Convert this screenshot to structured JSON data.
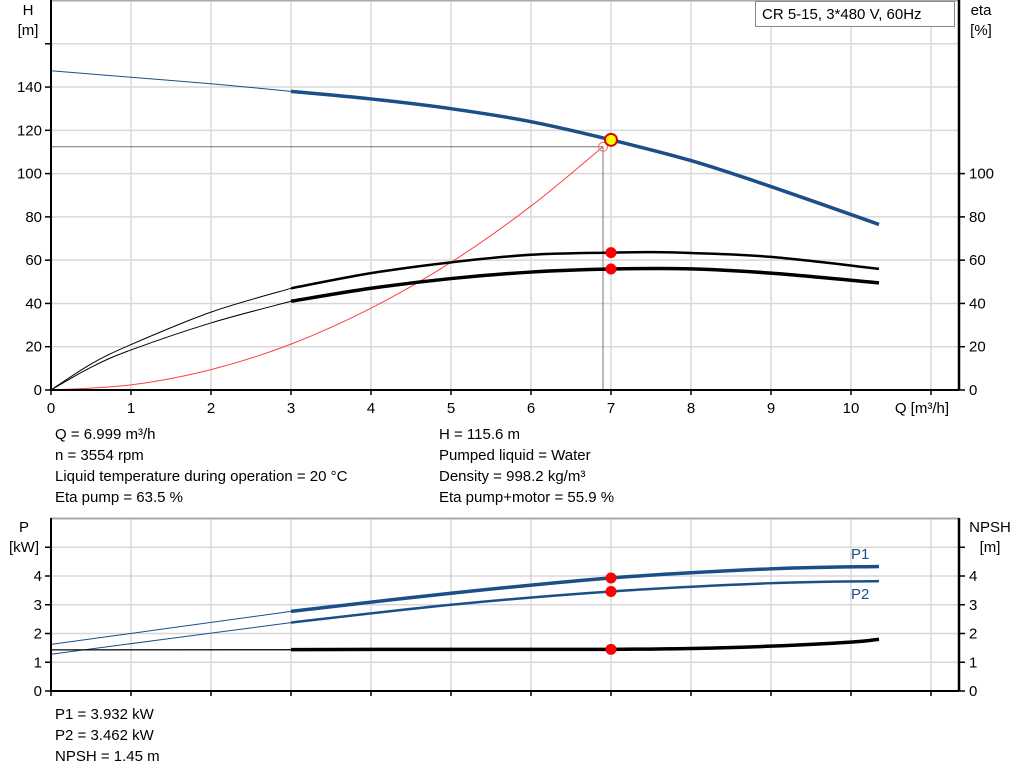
{
  "chart_data": [
    {
      "type": "line",
      "title": "CR 5-15, 3*480 V, 60Hz",
      "xlabel": "Q [m³/h]",
      "ylabel": "H [m]",
      "ylabel_name": "H",
      "ylabel_unit": "[m]",
      "y2label_name": "eta",
      "y2label_unit": "[%]",
      "xlim": [
        0,
        11.4
      ],
      "ylim": [
        0,
        180
      ],
      "y2lim": [
        0,
        180
      ],
      "x_ticks": [
        "0",
        "1",
        "2",
        "3",
        "4",
        "5",
        "6",
        "7",
        "8",
        "9",
        "10"
      ],
      "y_ticks": [
        "0",
        "20",
        "40",
        "60",
        "80",
        "100",
        "120",
        "140"
      ],
      "y2_ticks": [
        "0",
        "20",
        "40",
        "60",
        "80",
        "100"
      ],
      "grid": true,
      "series": [
        {
          "key": "H",
          "color": "#1a4f87",
          "x": [
            0,
            1,
            2,
            3,
            4,
            5,
            6,
            7,
            8,
            9,
            10.35
          ],
          "y": [
            147.5,
            144.5,
            141.5,
            138,
            134.5,
            130,
            124,
            115.6,
            106,
            94,
            76.5
          ],
          "thin_until": 3
        },
        {
          "key": "eta_pump",
          "color": "#000000",
          "x": [
            0,
            0.5,
            1,
            2,
            3,
            4,
            5,
            6,
            7,
            7.5,
            8,
            9,
            10.35
          ],
          "y": [
            0,
            12,
            21,
            36,
            47,
            54,
            59,
            62.5,
            63.5,
            63.7,
            63.3,
            61.5,
            56
          ],
          "thin_until": 3
        },
        {
          "key": "eta_pump_motor",
          "color": "#000000",
          "x": [
            0,
            0.5,
            1,
            2,
            3,
            4,
            5,
            6,
            7,
            8,
            9,
            10.35
          ],
          "y": [
            0,
            10.5,
            18.5,
            31,
            41,
            47,
            51.5,
            54.5,
            55.9,
            56,
            54,
            49.5
          ],
          "thin_until": 3
        },
        {
          "key": "system_curve",
          "color": "#ff4040",
          "x": [
            0,
            1,
            2,
            3,
            4,
            5,
            6,
            6.9
          ],
          "y": [
            0,
            2.36,
            9.4,
            21.2,
            37.8,
            59,
            85,
            112.4
          ]
        }
      ],
      "operating_point": {
        "Q": 7.0,
        "H": 115.6,
        "eta_pump": 63.5,
        "eta_pump_motor": 55.9
      },
      "duty_point": {
        "Q": 6.9,
        "H": 112.4
      }
    },
    {
      "type": "line",
      "xlim": [
        0,
        11.4
      ],
      "ylim": [
        0,
        6
      ],
      "y2lim": [
        0,
        6
      ],
      "ylabel_name": "P",
      "ylabel_unit": "[kW]",
      "y2label_name": "NPSH",
      "y2label_unit": "[m]",
      "y_ticks": [
        "0",
        "1",
        "2",
        "3",
        "4"
      ],
      "y2_ticks": [
        "0",
        "1",
        "2",
        "3",
        "4"
      ],
      "grid": true,
      "series": [
        {
          "name": "P1",
          "color": "#1a4f87",
          "x": [
            0,
            3,
            5,
            7,
            9,
            10.35
          ],
          "y": [
            1.62,
            2.77,
            3.4,
            3.932,
            4.25,
            4.33
          ],
          "thin_until": 3
        },
        {
          "name": "P2",
          "color": "#1a4f87",
          "x": [
            0,
            3,
            5,
            7,
            9,
            10.35
          ],
          "y": [
            1.28,
            2.38,
            3.0,
            3.462,
            3.75,
            3.82
          ],
          "thin_until": 3
        },
        {
          "key": "NPSH",
          "color": "#000000",
          "x": [
            0,
            3,
            5,
            7,
            8,
            9,
            10,
            10.35
          ],
          "y": [
            1.43,
            1.44,
            1.45,
            1.45,
            1.48,
            1.56,
            1.7,
            1.8
          ],
          "thin_until": 3
        }
      ],
      "operating_point": {
        "Q": 7.0,
        "P1": 3.932,
        "P2": 3.462,
        "NPSH": 1.45
      }
    }
  ],
  "info_top_left": [
    "Q = 6.999 m³/h",
    "n = 3554 rpm",
    "Liquid temperature during operation = 20 °C",
    "Eta pump = 63.5 %"
  ],
  "info_top_right": [
    "H = 115.6 m",
    "Pumped liquid = Water",
    "Density = 998.2 kg/m³",
    "Eta pump+motor = 55.9 %"
  ],
  "info_bottom": [
    "P1 = 3.932 kW",
    "P2 = 3.462 kW",
    "NPSH = 1.45 m"
  ]
}
